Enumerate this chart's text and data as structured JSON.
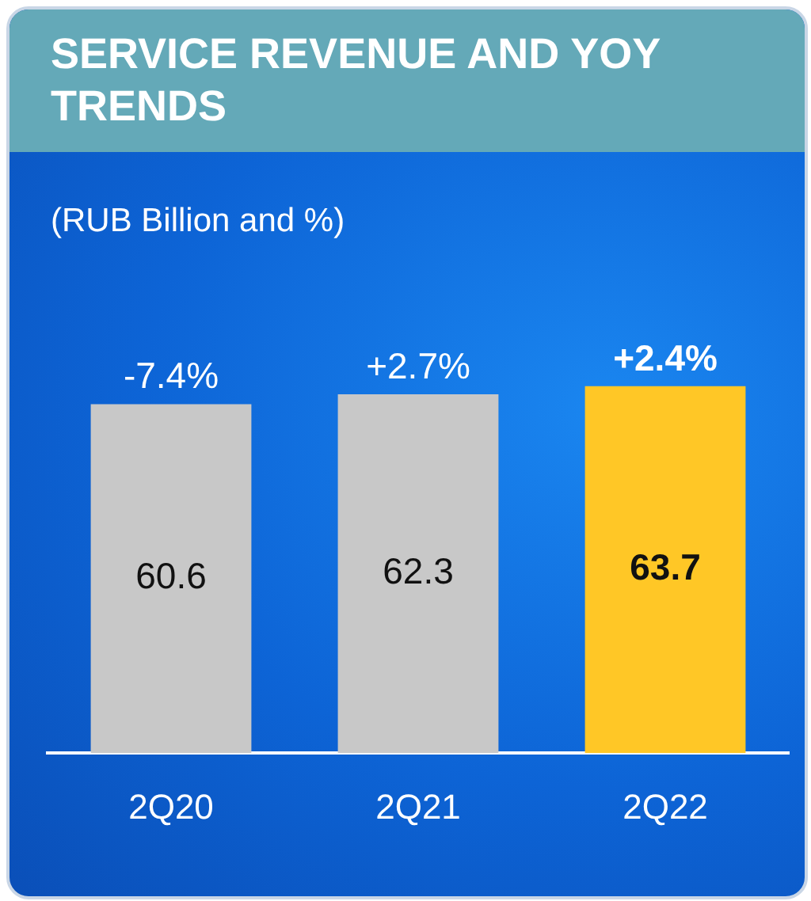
{
  "chart_data": {
    "type": "bar",
    "title": "SERVICE REVENUE AND YOY TRENDS",
    "subtitle": "(RUB Billion and %)",
    "categories": [
      "2Q20",
      "2Q21",
      "2Q22"
    ],
    "values": [
      60.6,
      62.3,
      63.7
    ],
    "colors": [
      "#c8c8c8",
      "#c8c8c8",
      "#ffc726"
    ],
    "data_labels": true,
    "annotations": [
      {
        "text": "-7.4%",
        "x": "2Q20",
        "y": 60.6
      },
      {
        "text": "+2.7%",
        "x": "2Q21",
        "y": 62.3
      },
      {
        "text": "+2.4%",
        "x": "2Q22",
        "y": 63.7
      }
    ],
    "grid": false,
    "legend": false
  }
}
